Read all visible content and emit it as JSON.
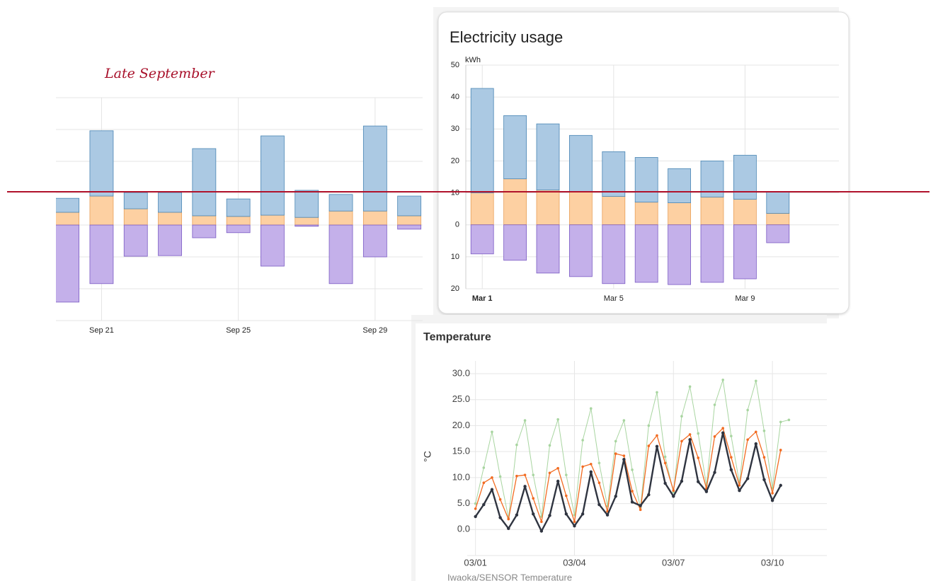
{
  "chart_data": [
    {
      "type": "bar",
      "annotation": "Late September",
      "categories": [
        null,
        "Sep 21",
        null,
        null,
        null,
        "Sep 25",
        null,
        null,
        null,
        "Sep 29",
        null
      ],
      "series": [
        {
          "color": "#fdd0a2",
          "edge_color": "#e8a05a",
          "values": [
            4.0,
            9.1,
            5.1,
            4.0,
            2.9,
            2.7,
            3.1,
            2.4,
            4.4,
            4.4,
            2.9
          ]
        },
        {
          "color": "#abc9e3",
          "edge_color": "#4a86b4",
          "values": [
            4.4,
            20.5,
            5.1,
            6.2,
            21.1,
            5.5,
            24.9,
            8.5,
            5.2,
            26.7,
            6.2
          ]
        },
        {
          "color": "#c4b0ea",
          "edge_color": "#7b5bc4",
          "values": [
            -24.2,
            -18.4,
            -9.8,
            -9.6,
            -4.0,
            -2.4,
            -12.9,
            -0.4,
            -18.4,
            -10.0,
            -1.3
          ]
        }
      ],
      "ylim": [
        -30,
        40
      ],
      "yticks": [
        -30,
        -20,
        -10,
        0,
        10,
        20,
        30,
        40
      ],
      "ytick_labels": false,
      "grid": true
    },
    {
      "type": "bar",
      "title": "Electricity usage",
      "y_unit": "kWh",
      "categories": [
        "Mar 1",
        null,
        null,
        null,
        "Mar 5",
        null,
        null,
        null,
        "Mar 9",
        null
      ],
      "series": [
        {
          "color": "#fdd0a2",
          "edge_color": "#e8a05a",
          "values": [
            10.0,
            14.4,
            10.9,
            10.4,
            8.9,
            7.1,
            6.9,
            8.7,
            8.0,
            3.6
          ]
        },
        {
          "color": "#abc9e3",
          "edge_color": "#4a86b4",
          "values": [
            32.7,
            19.8,
            20.7,
            17.6,
            14.0,
            14.0,
            10.7,
            11.3,
            13.8,
            6.8
          ]
        },
        {
          "color": "#c4b0ea",
          "edge_color": "#7b5bc4",
          "values": [
            -9.1,
            -11.1,
            -15.1,
            -16.2,
            -18.4,
            -18.0,
            -18.7,
            -18.0,
            -16.9,
            -5.6
          ]
        }
      ],
      "ylim": [
        -20,
        50
      ],
      "yticks": [
        50,
        40,
        30,
        20,
        10,
        0,
        {
          "value": -10,
          "label": "10"
        },
        {
          "value": -20,
          "label": "20"
        }
      ],
      "ytick_labels": true,
      "grid": true
    },
    {
      "type": "line",
      "title": "Temperature",
      "ylabel": "°C",
      "caption": "Iwaoka/SENSOR Temperature",
      "x": [
        0,
        0.25,
        0.5,
        0.75,
        1,
        1.25,
        1.5,
        1.75,
        2,
        2.25,
        2.5,
        2.75,
        3,
        3.25,
        3.5,
        3.75,
        4,
        4.25,
        4.5,
        4.75,
        5,
        5.25,
        5.5,
        5.75,
        6,
        6.25,
        6.5,
        6.75,
        7,
        7.25,
        7.5,
        7.75,
        8,
        8.25,
        8.5,
        8.75,
        9,
        9.25,
        9.5
      ],
      "series": [
        {
          "color": "#a8d5a0",
          "width": 1,
          "values": [
            5.0,
            11.9,
            18.8,
            10.2,
            2.2,
            16.3,
            21.0,
            10.5,
            2.5,
            16.2,
            21.2,
            10.5,
            2.8,
            17.2,
            23.3,
            12.8,
            4.5,
            17.0,
            21.0,
            11.5,
            4.2,
            20.0,
            26.4,
            14.0,
            7.2,
            21.8,
            27.5,
            18.5,
            8.5,
            24.0,
            28.8,
            18.0,
            9.0,
            23.0,
            28.6,
            19.0,
            8.0,
            20.7,
            21.1
          ]
        },
        {
          "color": "#f26b21",
          "width": 1.3,
          "values": [
            4.0,
            9.0,
            10.0,
            5.8,
            2.0,
            10.3,
            10.5,
            6.0,
            1.5,
            10.9,
            11.8,
            6.5,
            1.5,
            12.1,
            12.6,
            9.0,
            3.5,
            14.6,
            14.2,
            7.4,
            3.8,
            16.1,
            18.1,
            12.8,
            7.5,
            17.0,
            18.3,
            13.8,
            7.9,
            17.9,
            19.5,
            13.9,
            8.5,
            17.3,
            18.8,
            13.9,
            7.0,
            15.3,
            null
          ]
        },
        {
          "color": "#2f3440",
          "width": 2.4,
          "values": [
            2.5,
            4.8,
            7.7,
            2.3,
            0.2,
            2.8,
            8.3,
            3.0,
            -0.3,
            2.7,
            9.3,
            3.0,
            0.7,
            3.0,
            11.1,
            4.8,
            2.8,
            6.4,
            13.5,
            5.3,
            4.6,
            6.7,
            16.0,
            8.9,
            6.4,
            9.3,
            17.3,
            9.2,
            7.3,
            11.0,
            18.6,
            11.5,
            7.5,
            9.8,
            16.5,
            9.6,
            5.6,
            8.5,
            null
          ]
        }
      ],
      "xlim": [
        -0.25,
        10.65
      ],
      "xticks": [
        {
          "value": 0,
          "label": "03/01"
        },
        {
          "value": 3,
          "label": "03/04"
        },
        {
          "value": 6,
          "label": "03/07"
        },
        {
          "value": 9,
          "label": "03/10"
        }
      ],
      "ylim": [
        -5,
        30
      ],
      "yticks": [
        {
          "value": 0,
          "label": "0.0"
        },
        {
          "value": 5,
          "label": "5.0"
        },
        {
          "value": 10,
          "label": "10.0"
        },
        {
          "value": 15,
          "label": "15.0"
        },
        {
          "value": 20,
          "label": "20.0"
        },
        {
          "value": 25,
          "label": "25.0"
        },
        {
          "value": 30,
          "label": "30.0"
        }
      ],
      "grid": true
    }
  ]
}
